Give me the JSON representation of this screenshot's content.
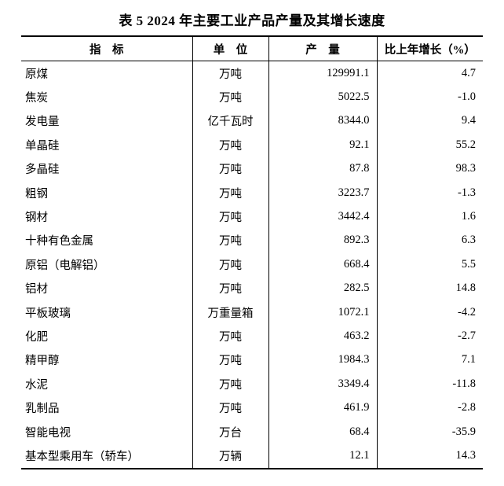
{
  "title": "表 5 2024 年主要工业产品产量及其增长速度",
  "colors": {
    "background": "#ffffff",
    "text": "#000000",
    "border": "#000000"
  },
  "table": {
    "headers": {
      "indicator": "指　标",
      "unit": "单　位",
      "output": "产　量",
      "growth": "比上年增长（%）"
    },
    "rows": [
      {
        "indicator": "原煤",
        "unit": "万吨",
        "output": "129991.1",
        "growth": "4.7"
      },
      {
        "indicator": "焦炭",
        "unit": "万吨",
        "output": "5022.5",
        "growth": "-1.0"
      },
      {
        "indicator": "发电量",
        "unit": "亿千瓦时",
        "output": "8344.0",
        "growth": "9.4"
      },
      {
        "indicator": "单晶硅",
        "unit": "万吨",
        "output": "92.1",
        "growth": "55.2"
      },
      {
        "indicator": "多晶硅",
        "unit": "万吨",
        "output": "87.8",
        "growth": "98.3"
      },
      {
        "indicator": "粗钢",
        "unit": "万吨",
        "output": "3223.7",
        "growth": "-1.3"
      },
      {
        "indicator": "钢材",
        "unit": "万吨",
        "output": "3442.4",
        "growth": "1.6"
      },
      {
        "indicator": "十种有色金属",
        "unit": "万吨",
        "output": "892.3",
        "growth": "6.3"
      },
      {
        "indicator": "原铝（电解铝）",
        "unit": "万吨",
        "output": "668.4",
        "growth": "5.5"
      },
      {
        "indicator": "铝材",
        "unit": "万吨",
        "output": "282.5",
        "growth": "14.8"
      },
      {
        "indicator": "平板玻璃",
        "unit": "万重量箱",
        "output": "1072.1",
        "growth": "-4.2"
      },
      {
        "indicator": "化肥",
        "unit": "万吨",
        "output": "463.2",
        "growth": "-2.7"
      },
      {
        "indicator": "精甲醇",
        "unit": "万吨",
        "output": "1984.3",
        "growth": "7.1"
      },
      {
        "indicator": "水泥",
        "unit": "万吨",
        "output": "3349.4",
        "growth": "-11.8"
      },
      {
        "indicator": "乳制品",
        "unit": "万吨",
        "output": "461.9",
        "growth": "-2.8"
      },
      {
        "indicator": "智能电视",
        "unit": "万台",
        "output": "68.4",
        "growth": "-35.9"
      },
      {
        "indicator": "基本型乘用车（轿车）",
        "unit": "万辆",
        "output": "12.1",
        "growth": "14.3"
      }
    ]
  }
}
